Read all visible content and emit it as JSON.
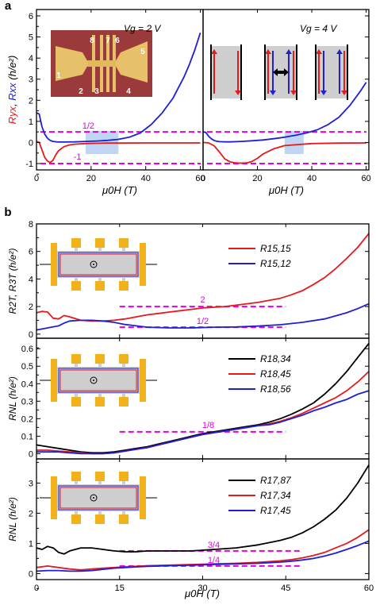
{
  "figure": {
    "panel_a_label": "a",
    "panel_b_label": "b",
    "colors": {
      "red": "#e41a1c",
      "blue": "#1f1fd6",
      "black": "#000000",
      "magenta": "#e000e0",
      "gold": "#f2b21b",
      "gray": "#cfcfcf",
      "shade": "#a8c8ee",
      "photo_bg": "#9a3a3a"
    }
  },
  "chart_data": [
    {
      "id": "a_left",
      "type": "line",
      "annotation": "Vg = 2 V",
      "xlabel": "μ0H (T)",
      "ylabel_parts": [
        "Ryx",
        "Rxx",
        "(h/e²)"
      ],
      "xlim": [
        0,
        61
      ],
      "ylim": [
        -1.3,
        6.3
      ],
      "xticks": [
        0,
        20,
        40,
        60
      ],
      "yticks": [
        -1,
        0,
        1,
        2,
        3,
        4,
        5,
        6
      ],
      "hlines": [
        {
          "y": 0.5,
          "label": "1/2"
        },
        {
          "y": -1,
          "label": "-1"
        }
      ],
      "shaded_x": [
        18,
        30
      ],
      "series": [
        {
          "key": "Rxx",
          "color": "#1f1fd6",
          "x": [
            0,
            1,
            2,
            3,
            4,
            5,
            6,
            8,
            10,
            14,
            18,
            22,
            26,
            30,
            34,
            38,
            42,
            46,
            50,
            54,
            56,
            58,
            60
          ],
          "y": [
            1.4,
            1.35,
            0.75,
            0.4,
            0.2,
            0.1,
            0.05,
            0.02,
            0.02,
            0.03,
            0.05,
            0.07,
            0.1,
            0.15,
            0.25,
            0.45,
            0.85,
            1.4,
            2.1,
            3.1,
            3.7,
            4.4,
            5.2
          ]
        },
        {
          "key": "Ryx",
          "color": "#e41a1c",
          "x": [
            0,
            1,
            2,
            3,
            4,
            5,
            6,
            7,
            8,
            10,
            12,
            14,
            18,
            22,
            26,
            30,
            40,
            50,
            60
          ],
          "y": [
            0.05,
            0.0,
            -0.35,
            -0.7,
            -0.88,
            -0.95,
            -0.85,
            -0.6,
            -0.4,
            -0.2,
            -0.12,
            -0.08,
            -0.05,
            -0.04,
            -0.03,
            -0.03,
            -0.02,
            -0.02,
            -0.02
          ]
        }
      ],
      "inset": {
        "lead_labels": [
          "1",
          "2",
          "3",
          "4",
          "5",
          "6",
          "7",
          "8"
        ]
      }
    },
    {
      "id": "a_right",
      "type": "line",
      "annotation": "Vg = 4 V",
      "xlabel": "μ0H (T)",
      "xlim": [
        0,
        61
      ],
      "ylim": [
        -1.3,
        6.3
      ],
      "xticks": [
        0,
        20,
        40,
        60
      ],
      "yticks": [
        -1,
        0,
        1,
        2,
        3,
        4,
        5,
        6
      ],
      "hlines": [
        {
          "y": 0.5
        },
        {
          "y": -1
        }
      ],
      "shaded_x": [
        30,
        37
      ],
      "series": [
        {
          "key": "Rxx",
          "color": "#1f1fd6",
          "x": [
            0,
            1,
            2,
            3,
            4,
            5,
            6,
            8,
            10,
            14,
            18,
            22,
            26,
            30,
            34,
            38,
            42,
            46,
            50,
            54,
            58,
            60
          ],
          "y": [
            0.5,
            0.48,
            0.3,
            0.18,
            0.1,
            0.06,
            0.04,
            0.03,
            0.03,
            0.05,
            0.08,
            0.12,
            0.18,
            0.25,
            0.34,
            0.45,
            0.6,
            0.85,
            1.2,
            1.75,
            2.45,
            2.85
          ]
        },
        {
          "key": "Ryx",
          "color": "#e41a1c",
          "x": [
            0,
            2,
            4,
            6,
            8,
            10,
            12,
            14,
            16,
            18,
            20,
            22,
            26,
            30,
            40,
            50,
            60
          ],
          "y": [
            0.0,
            -0.02,
            -0.15,
            -0.45,
            -0.78,
            -0.92,
            -0.97,
            -0.98,
            -0.97,
            -0.9,
            -0.75,
            -0.55,
            -0.3,
            -0.15,
            -0.05,
            -0.03,
            -0.02
          ]
        }
      ]
    },
    {
      "id": "b_top",
      "type": "line",
      "ylabel": "R2T, R3T (h/e²)",
      "xlim": [
        0,
        60
      ],
      "ylim": [
        -0.3,
        8
      ],
      "yticks": [
        0,
        2,
        4,
        6,
        8
      ],
      "hlines": [
        {
          "y": 2,
          "x": [
            15,
            45
          ],
          "label": "2"
        },
        {
          "y": 0.5,
          "x": [
            15,
            45
          ],
          "label": "1/2"
        }
      ],
      "series": [
        {
          "name": "R15,15",
          "color": "#e41a1c",
          "x": [
            0,
            1,
            2,
            3,
            4,
            5,
            6,
            8,
            10,
            12,
            14,
            16,
            18,
            20,
            22,
            24,
            26,
            28,
            30,
            32,
            34,
            36,
            38,
            40,
            42,
            44,
            46,
            48,
            50,
            52,
            54,
            56,
            58,
            60
          ],
          "y": [
            1.55,
            1.65,
            1.6,
            1.15,
            1.1,
            1.35,
            1.25,
            1.0,
            0.95,
            0.95,
            1.0,
            1.1,
            1.25,
            1.4,
            1.5,
            1.6,
            1.7,
            1.8,
            1.9,
            1.95,
            2.0,
            2.1,
            2.2,
            2.3,
            2.45,
            2.6,
            2.85,
            3.15,
            3.6,
            4.1,
            4.75,
            5.5,
            6.3,
            7.3
          ]
        },
        {
          "name": "R15,12",
          "color": "#1f1fd6",
          "x": [
            0,
            2,
            4,
            5,
            6,
            8,
            10,
            12,
            14,
            16,
            18,
            20,
            24,
            28,
            32,
            36,
            40,
            44,
            48,
            52,
            56,
            58,
            60
          ],
          "y": [
            0.3,
            0.45,
            0.6,
            0.8,
            0.95,
            1.0,
            1.0,
            0.95,
            0.85,
            0.7,
            0.6,
            0.5,
            0.45,
            0.45,
            0.5,
            0.52,
            0.58,
            0.68,
            0.85,
            1.1,
            1.55,
            1.85,
            2.2
          ]
        }
      ]
    },
    {
      "id": "b_mid",
      "type": "line",
      "ylabel": "RNL (h/e²)",
      "xlim": [
        0,
        60
      ],
      "ylim": [
        -0.03,
        0.66
      ],
      "yticks": [
        0.0,
        0.1,
        0.2,
        0.3,
        0.4,
        0.5,
        0.6
      ],
      "hlines": [
        {
          "y": 0.125,
          "x": [
            15,
            45
          ],
          "label": "1/8"
        }
      ],
      "series": [
        {
          "name": "R18,34",
          "color": "#000000",
          "x": [
            0,
            2,
            4,
            6,
            8,
            10,
            12,
            14,
            16,
            18,
            20,
            22,
            24,
            26,
            28,
            30,
            32,
            34,
            36,
            38,
            40,
            42,
            44,
            46,
            48,
            50,
            52,
            54,
            56,
            58,
            60
          ],
          "y": [
            0.05,
            0.04,
            0.03,
            0.02,
            0.01,
            0.005,
            0.005,
            0.01,
            0.02,
            0.03,
            0.04,
            0.055,
            0.07,
            0.085,
            0.1,
            0.115,
            0.125,
            0.135,
            0.145,
            0.155,
            0.165,
            0.18,
            0.2,
            0.225,
            0.255,
            0.29,
            0.34,
            0.4,
            0.47,
            0.55,
            0.63
          ]
        },
        {
          "name": "R18,45",
          "color": "#e41a1c",
          "x": [
            0,
            2,
            4,
            6,
            8,
            10,
            12,
            14,
            16,
            18,
            20,
            22,
            24,
            26,
            28,
            30,
            32,
            34,
            36,
            38,
            40,
            42,
            44,
            46,
            48,
            50,
            52,
            54,
            56,
            58,
            60
          ],
          "y": [
            0.02,
            0.02,
            0.015,
            0.01,
            0.005,
            0.0,
            0.0,
            0.005,
            0.015,
            0.025,
            0.035,
            0.05,
            0.065,
            0.08,
            0.095,
            0.11,
            0.12,
            0.13,
            0.14,
            0.15,
            0.16,
            0.17,
            0.185,
            0.205,
            0.23,
            0.26,
            0.29,
            0.32,
            0.36,
            0.41,
            0.47
          ]
        },
        {
          "name": "R18,56",
          "color": "#1f1fd6",
          "x": [
            0,
            2,
            4,
            6,
            8,
            10,
            12,
            14,
            16,
            18,
            20,
            22,
            24,
            26,
            28,
            30,
            32,
            34,
            36,
            38,
            40,
            42,
            44,
            46,
            48,
            50,
            52,
            54,
            56,
            58,
            60
          ],
          "y": [
            0.01,
            0.01,
            0.01,
            0.005,
            0.0,
            0.0,
            0.0,
            0.005,
            0.015,
            0.025,
            0.035,
            0.05,
            0.065,
            0.08,
            0.095,
            0.11,
            0.12,
            0.13,
            0.14,
            0.15,
            0.16,
            0.165,
            0.18,
            0.2,
            0.22,
            0.245,
            0.265,
            0.29,
            0.31,
            0.34,
            0.36
          ]
        }
      ]
    },
    {
      "id": "b_bot",
      "type": "line",
      "ylabel": "RNL (h/e²)",
      "xlabel": "μ0H (T)",
      "xlim": [
        0,
        60
      ],
      "ylim": [
        -0.2,
        3.8
      ],
      "xticks": [
        0,
        15,
        30,
        45,
        60
      ],
      "yticks": [
        0,
        1,
        2,
        3
      ],
      "hlines": [
        {
          "y": 0.75,
          "x": [
            15,
            48
          ],
          "label": "3/4"
        },
        {
          "y": 0.25,
          "x": [
            15,
            48
          ],
          "label": "1/4"
        }
      ],
      "series": [
        {
          "name": "R17,87",
          "color": "#000000",
          "x": [
            0,
            1,
            2,
            3,
            4,
            5,
            6,
            8,
            10,
            12,
            14,
            16,
            18,
            20,
            24,
            28,
            32,
            36,
            40,
            44,
            46,
            48,
            50,
            52,
            54,
            56,
            58,
            60
          ],
          "y": [
            0.85,
            0.8,
            0.9,
            0.85,
            0.7,
            0.65,
            0.75,
            0.85,
            0.85,
            0.8,
            0.75,
            0.72,
            0.72,
            0.75,
            0.75,
            0.75,
            0.8,
            0.85,
            0.95,
            1.1,
            1.2,
            1.35,
            1.55,
            1.8,
            2.1,
            2.5,
            3.0,
            3.6
          ]
        },
        {
          "name": "R17,34",
          "color": "#e41a1c",
          "x": [
            0,
            2,
            4,
            6,
            8,
            10,
            12,
            14,
            16,
            18,
            20,
            24,
            28,
            32,
            36,
            40,
            44,
            46,
            48,
            50,
            52,
            54,
            56,
            58,
            60
          ],
          "y": [
            0.2,
            0.25,
            0.2,
            0.15,
            0.12,
            0.15,
            0.18,
            0.2,
            0.22,
            0.24,
            0.26,
            0.28,
            0.3,
            0.32,
            0.34,
            0.37,
            0.42,
            0.46,
            0.52,
            0.6,
            0.7,
            0.85,
            1.0,
            1.2,
            1.45
          ]
        },
        {
          "name": "R17,45",
          "color": "#1f1fd6",
          "x": [
            0,
            2,
            4,
            6,
            8,
            10,
            12,
            14,
            16,
            18,
            20,
            24,
            28,
            32,
            36,
            40,
            44,
            46,
            48,
            50,
            52,
            54,
            56,
            58,
            60
          ],
          "y": [
            0.08,
            0.1,
            0.1,
            0.08,
            0.08,
            0.1,
            0.14,
            0.18,
            0.2,
            0.22,
            0.24,
            0.26,
            0.28,
            0.3,
            0.32,
            0.34,
            0.38,
            0.41,
            0.45,
            0.5,
            0.58,
            0.68,
            0.8,
            0.93,
            1.08
          ]
        }
      ]
    }
  ]
}
